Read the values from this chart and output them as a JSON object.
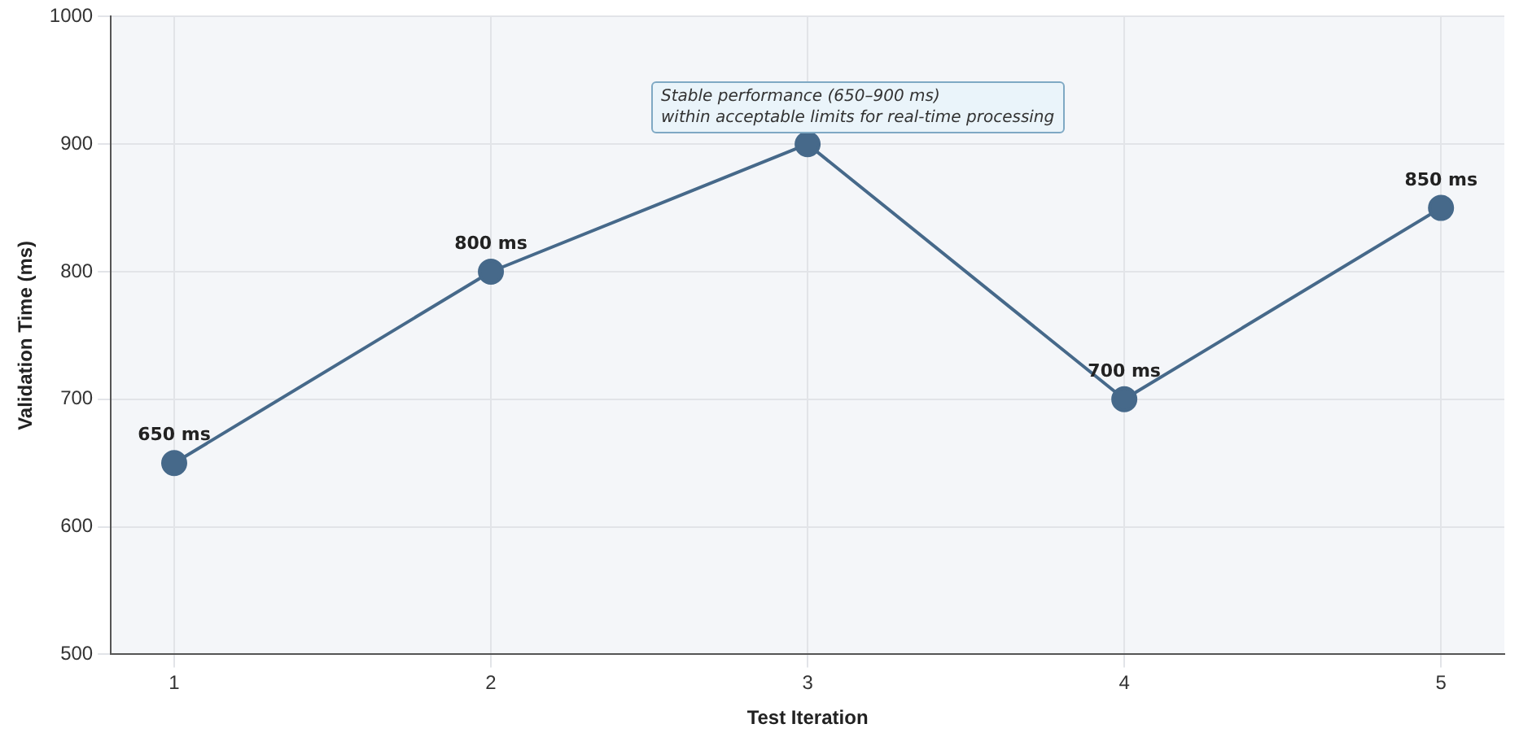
{
  "chart_data": {
    "type": "line",
    "xlabel": "Test Iteration",
    "ylabel": "Validation Time (ms)",
    "x": [
      1,
      2,
      3,
      4,
      5
    ],
    "series": [
      {
        "color": "#46698a",
        "values": [
          650,
          800,
          900,
          700,
          850
        ],
        "value_labels": [
          "650 ms",
          "800 ms",
          null,
          "700 ms",
          "850 ms"
        ]
      }
    ],
    "xlim": [
      0.8,
      5.2
    ],
    "xticks": [
      1,
      2,
      3,
      4,
      5
    ],
    "ylim": [
      500,
      1000
    ],
    "yticks": [
      500,
      600,
      700,
      800,
      900,
      1000
    ],
    "grid": true,
    "legend": false,
    "marker": "circle",
    "line_style": "solid",
    "annotations": [
      "Stable performance (650–900 ms)\nwithin acceptable limits for real-time processing"
    ]
  }
}
